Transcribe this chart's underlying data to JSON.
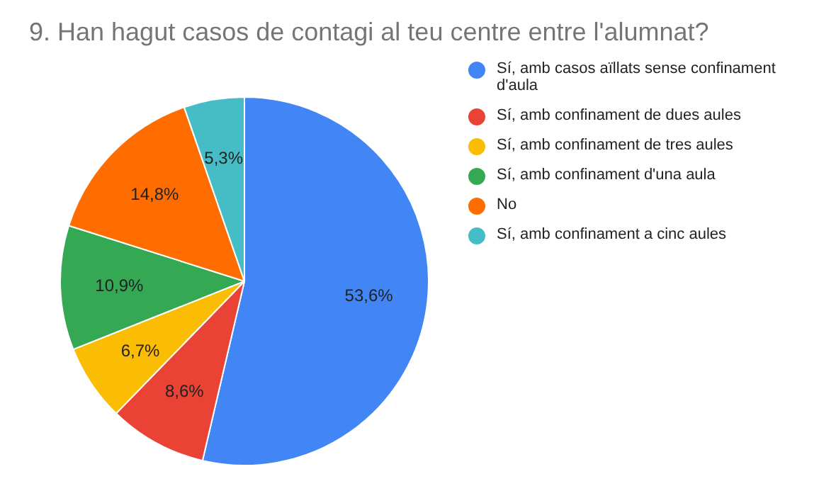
{
  "chart_data": {
    "type": "pie",
    "title": "9. Han hagut casos de contagi al teu centre entre l'alumnat?",
    "categories": [
      "Sí, amb casos aïllats sense confinament d'aula",
      "Sí, amb confinament de dues aules",
      "Sí, amb confinament de tres aules",
      "Sí, amb confinament d'una aula",
      "No",
      "Sí, amb confinament a cinc aules"
    ],
    "values": [
      53.6,
      8.6,
      6.7,
      10.9,
      14.8,
      5.3
    ],
    "colors": [
      "#4285f4",
      "#ea4335",
      "#fbbc04",
      "#34a853",
      "#ff6d01",
      "#46bdc6"
    ],
    "value_labels": [
      "53,6%",
      "8,6%",
      "6,7%",
      "10,9%",
      "14,8%",
      "5,3%"
    ],
    "legend": "right"
  }
}
